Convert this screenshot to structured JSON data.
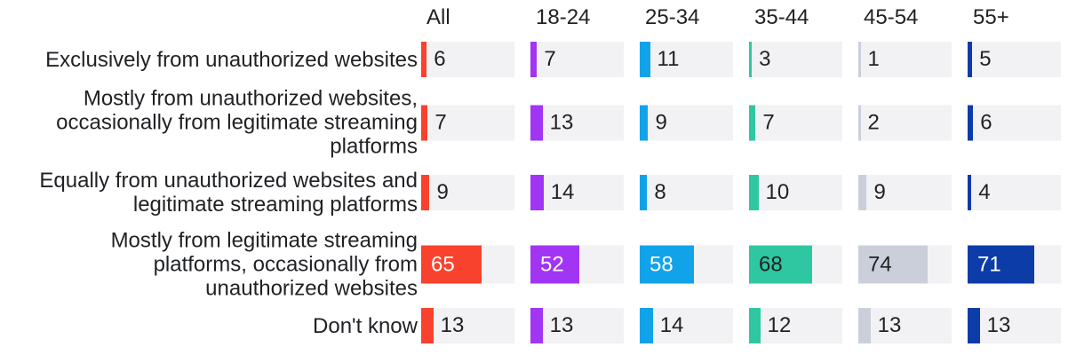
{
  "chart_data": {
    "type": "bar",
    "title": "",
    "grid": false,
    "legend_position": "top-column-headers",
    "scale_max": 100,
    "track_color": "#F2F2F4",
    "text_color": "#1F2124",
    "inside_label_min_value": 30,
    "columns": [
      {
        "label": "All",
        "color": "#F9422D",
        "value_text_color": "#FFFFFF"
      },
      {
        "label": "18-24",
        "color": "#A234F3",
        "value_text_color": "#FFFFFF"
      },
      {
        "label": "25-34",
        "color": "#10A3EA",
        "value_text_color": "#FFFFFF"
      },
      {
        "label": "35-44",
        "color": "#2FC7A1",
        "value_text_color": "#1F2124"
      },
      {
        "label": "45-54",
        "color": "#CBCFDA",
        "value_text_color": "#1F2124"
      },
      {
        "label": "55+",
        "color": "#0B3CA7",
        "value_text_color": "#FFFFFF"
      }
    ],
    "rows": [
      {
        "label": "Exclusively from unauthorized websites",
        "values": [
          6,
          7,
          11,
          3,
          1,
          5
        ]
      },
      {
        "label": "Mostly from unauthorized websites,\noccasionally from legitimate streaming\nplatforms",
        "values": [
          7,
          13,
          9,
          7,
          2,
          6
        ]
      },
      {
        "label": "Equally from unauthorized websites and\nlegitimate streaming platforms",
        "values": [
          9,
          14,
          8,
          10,
          9,
          4
        ]
      },
      {
        "label": "Mostly from legitimate streaming\nplatforms, occasionally from\nunauthorized websites",
        "values": [
          65,
          52,
          58,
          68,
          74,
          71
        ]
      },
      {
        "label": "Don't know",
        "values": [
          13,
          13,
          14,
          12,
          13,
          13
        ]
      }
    ]
  }
}
